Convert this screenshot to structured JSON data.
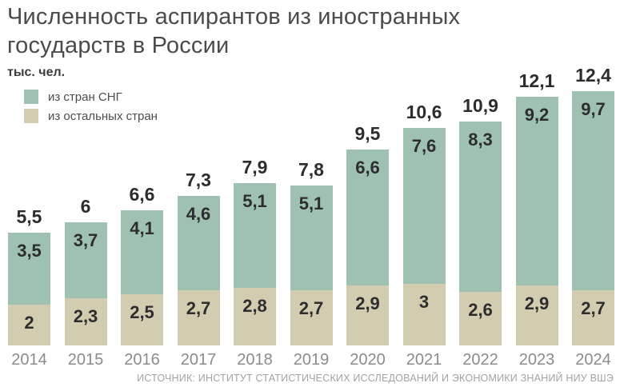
{
  "header": {
    "title": "Численность аспирантов из иностранных государств в России",
    "unit_label": "тыс. чел."
  },
  "footer": {
    "source": "ИСТОЧНИК: ИНСТИТУТ СТАТИСТИЧЕСКИХ ИССЛЕДОВАНИЙ И ЭКОНОМИКИ ЗНАНИЙ НИУ ВШЭ"
  },
  "chart_data": {
    "type": "bar",
    "stacked": true,
    "title": "Численность аспирантов из иностранных государств в России",
    "ylabel": "тыс. чел.",
    "grid": false,
    "legend_position": "top-left",
    "ylim": [
      0,
      12.4
    ],
    "categories": [
      "2014",
      "2015",
      "2016",
      "2017",
      "2018",
      "2019",
      "2020",
      "2021",
      "2022",
      "2023",
      "2024"
    ],
    "series": [
      {
        "name": "из стран СНГ",
        "color": "#9fc1b1",
        "values": [
          3.5,
          3.7,
          4.1,
          4.6,
          5.1,
          5.1,
          6.6,
          7.6,
          8.3,
          9.2,
          9.7
        ],
        "labels": [
          "3,5",
          "3,7",
          "4,1",
          "4,6",
          "5,1",
          "5,1",
          "6,6",
          "7,6",
          "8,3",
          "9,2",
          "9,7"
        ]
      },
      {
        "name": "из остальных стран",
        "color": "#d2ccb1",
        "values": [
          2,
          2.3,
          2.5,
          2.7,
          2.8,
          2.7,
          2.9,
          3,
          2.6,
          2.9,
          2.7
        ],
        "labels": [
          "2",
          "2,3",
          "2,5",
          "2,7",
          "2,8",
          "2,7",
          "2,9",
          "3",
          "2,6",
          "2,9",
          "2,7"
        ]
      }
    ],
    "totals": {
      "values": [
        5.5,
        6,
        6.6,
        7.3,
        7.9,
        7.8,
        9.5,
        10.6,
        10.9,
        12.1,
        12.4
      ],
      "labels": [
        "5,5",
        "6",
        "6,6",
        "7,3",
        "7,9",
        "7,8",
        "9,5",
        "10,6",
        "10,9",
        "12,1",
        "12,4"
      ]
    }
  }
}
